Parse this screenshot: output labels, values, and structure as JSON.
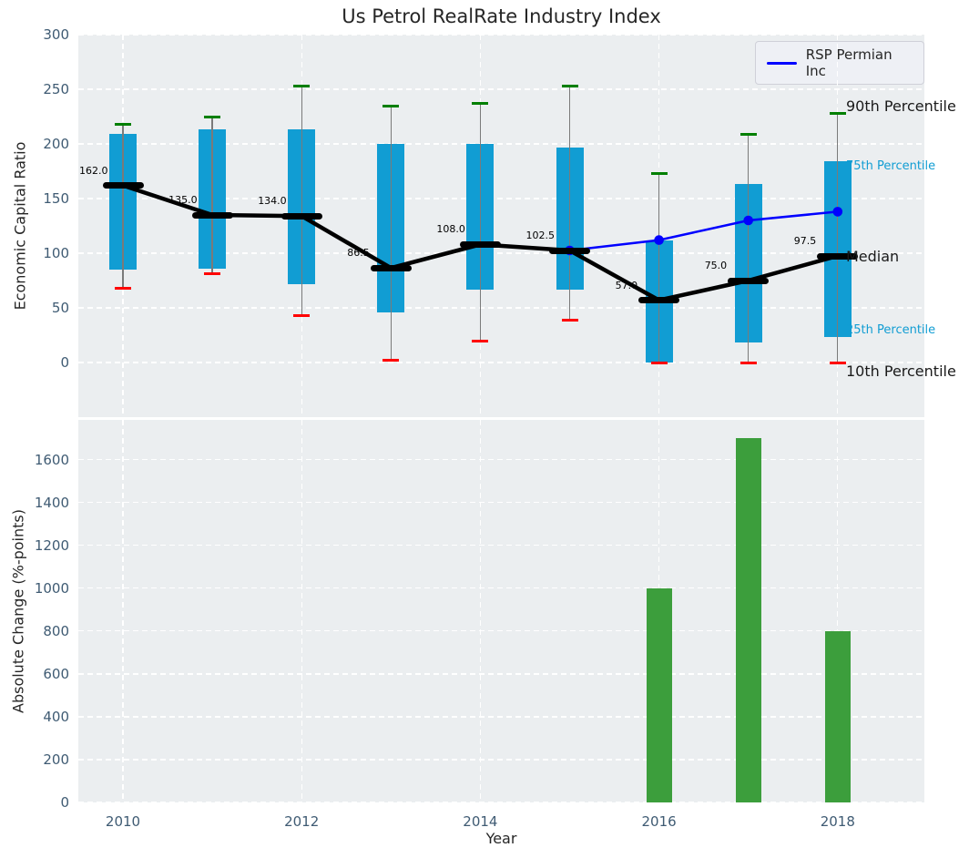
{
  "colors": {
    "box_fill": "#119dd3",
    "bar_fill": "#3c9e3c",
    "series_line": "#0000ff",
    "cap_high": "#007f00",
    "cap_low": "#ff0000",
    "median": "#000000",
    "whisker": "#7a7a7a",
    "tick_label": "#3f5b73",
    "axes_bg": "#ebeef0"
  },
  "chart_data": [
    {
      "type": "boxplot+line",
      "title": "Us Petrol RealRate Industry Index",
      "ylabel": "Economic Capital Ratio",
      "ylim": [
        -50,
        300
      ],
      "yticks": [
        300,
        250,
        200,
        150,
        100,
        50,
        0
      ],
      "xgrid_years": [
        2010,
        2012,
        2014,
        2016,
        2018
      ],
      "years": [
        2010,
        2011,
        2012,
        2013,
        2014,
        2015,
        2016,
        2017,
        2018
      ],
      "percentiles": {
        "p90": [
          218,
          225,
          253,
          235,
          237,
          253,
          173,
          209,
          228
        ],
        "p75": [
          209,
          213,
          213,
          200,
          200,
          197,
          112,
          163,
          184
        ],
        "median": [
          162.0,
          135.0,
          134.0,
          86.5,
          108.0,
          102.5,
          57.0,
          75.0,
          97.5
        ],
        "p25": [
          85,
          86,
          72,
          46,
          67,
          67,
          0,
          18,
          23
        ],
        "p10": [
          68,
          81,
          43,
          2,
          20,
          39,
          0,
          0,
          0
        ]
      },
      "median_labels": [
        "162.0",
        "135.0",
        "134.0",
        "86.5",
        "108.0",
        "102.5",
        "57.0",
        "75.0",
        "97.5"
      ],
      "series": [
        {
          "name": "RSP Permian Inc",
          "x": [
            2015,
            2016,
            2017,
            2018
          ],
          "values": [
            102.5,
            112,
            130,
            138
          ]
        }
      ],
      "annotations": [
        {
          "text": "90th Percentile",
          "y": 234,
          "style": "major"
        },
        {
          "text": "75th Percentile",
          "y": 179,
          "style": "minor"
        },
        {
          "text": "Median",
          "y": 97,
          "style": "major"
        },
        {
          "text": "25th Percentile",
          "y": 29,
          "style": "minor"
        },
        {
          "text": "10th Percentile",
          "y": -8,
          "style": "major"
        }
      ],
      "legend_position": "upper right",
      "grid": true
    },
    {
      "type": "bar",
      "ylabel": "Absolute Change (%-points)",
      "xlabel": "Year",
      "ylim": [
        0,
        1785
      ],
      "yticks": [
        0,
        200,
        400,
        600,
        800,
        1000,
        1200,
        1400,
        1600
      ],
      "xticks": [
        2010,
        2012,
        2014,
        2016,
        2018
      ],
      "xgrid_years": [
        2010,
        2012,
        2014,
        2016,
        2018
      ],
      "bars": {
        "x": [
          2016,
          2017,
          2018
        ],
        "values": [
          1000,
          1700,
          800
        ]
      },
      "grid": true
    }
  ]
}
